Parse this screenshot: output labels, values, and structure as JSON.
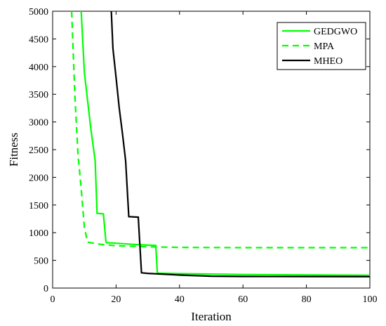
{
  "chart_data": {
    "type": "line",
    "xlabel": "Iteration",
    "ylabel": "Fitness",
    "xlim": [
      0,
      100
    ],
    "ylim": [
      0,
      5000
    ],
    "xticks": [
      0,
      20,
      40,
      60,
      80,
      100
    ],
    "yticks": [
      0,
      500,
      1000,
      1500,
      2000,
      2500,
      3000,
      3500,
      4000,
      4500,
      5000
    ],
    "grid": false,
    "legend_position": "top-right",
    "series": [
      {
        "name": "GEDGWO",
        "color": "#00ff00",
        "dash": "solid",
        "x": [
          9,
          10,
          12,
          13.4,
          14,
          16,
          16.8,
          17,
          20,
          25,
          30,
          32.5,
          33,
          40,
          60,
          100
        ],
        "y": [
          5000,
          3900,
          2900,
          2300,
          1350,
          1340,
          840,
          820,
          810,
          790,
          775,
          770,
          270,
          260,
          245,
          230
        ]
      },
      {
        "name": "MPA",
        "color": "#00ff00",
        "dash": "dashed",
        "x": [
          6,
          7,
          8,
          9,
          10,
          11,
          15,
          20,
          30,
          40,
          60,
          100
        ],
        "y": [
          5000,
          3500,
          2400,
          1800,
          1100,
          830,
          790,
          765,
          745,
          735,
          730,
          730
        ]
      },
      {
        "name": "MHEO",
        "color": "#000000",
        "dash": "solid",
        "x": [
          18.5,
          19,
          20,
          21,
          22,
          23,
          24,
          27,
          28,
          30,
          40,
          50,
          60,
          100
        ],
        "y": [
          5000,
          4330,
          3800,
          3250,
          2800,
          2300,
          1290,
          1280,
          275,
          265,
          235,
          215,
          210,
          205
        ]
      }
    ]
  }
}
